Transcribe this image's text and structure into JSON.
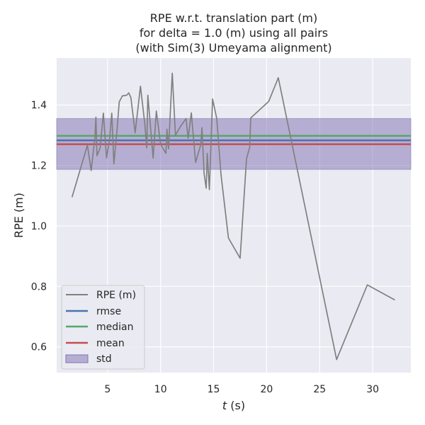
{
  "chart_data": {
    "type": "line",
    "title": [
      "RPE w.r.t. translation part (m)",
      "for delta = 1.0 (m) using all pairs",
      "(with Sim(3) Umeyama alignment)"
    ],
    "xlabel_var": "t",
    "xlabel_unit": " (s)",
    "ylabel": "RPE (m)",
    "xlim": [
      0.2,
      33.6
    ],
    "ylim": [
      0.515,
      1.555
    ],
    "xticks": [
      5,
      10,
      15,
      20,
      25,
      30
    ],
    "yticks": [
      0.6,
      0.8,
      1.0,
      1.2,
      1.4
    ],
    "ytick_labels": [
      "0.6",
      "0.8",
      "1.0",
      "1.2",
      "1.4"
    ],
    "grid": true,
    "legend_position": "lower-left",
    "series": [
      {
        "name": "RPE (m)",
        "color": "#808080",
        "x": [
          1.65,
          3.1,
          3.45,
          3.8,
          3.9,
          4.0,
          4.3,
          4.6,
          4.9,
          5.2,
          5.4,
          5.6,
          5.9,
          6.1,
          6.4,
          6.8,
          7.0,
          7.2,
          7.6,
          8.1,
          8.5,
          8.7,
          8.8,
          9.3,
          9.6,
          10.0,
          10.5,
          10.6,
          10.75,
          11.1,
          11.4,
          11.9,
          12.4,
          12.6,
          12.9,
          13.3,
          13.8,
          13.9,
          14.1,
          14.3,
          14.4,
          14.6,
          14.9,
          15.3,
          15.7,
          16.4,
          17.5,
          18.1,
          18.4,
          18.5,
          20.2,
          21.1,
          26.6,
          29.5,
          32.1
        ],
        "y": [
          1.095,
          1.267,
          1.183,
          1.29,
          1.36,
          1.232,
          1.258,
          1.373,
          1.225,
          1.29,
          1.373,
          1.205,
          1.319,
          1.41,
          1.43,
          1.432,
          1.44,
          1.424,
          1.308,
          1.462,
          1.34,
          1.258,
          1.432,
          1.224,
          1.38,
          1.27,
          1.24,
          1.32,
          1.255,
          1.505,
          1.3,
          1.33,
          1.355,
          1.29,
          1.374,
          1.21,
          1.27,
          1.325,
          1.174,
          1.125,
          1.24,
          1.12,
          1.42,
          1.355,
          1.17,
          0.96,
          0.893,
          1.222,
          1.26,
          1.357,
          1.412,
          1.49,
          0.558,
          0.805,
          0.755
        ]
      },
      {
        "name": "rmse",
        "color": "#4c72b0",
        "y": 1.283
      },
      {
        "name": "median",
        "color": "#55a868",
        "y": 1.298
      },
      {
        "name": "mean",
        "color": "#c44e52",
        "y": 1.27
      },
      {
        "name": "std",
        "color": "#8172b2",
        "range": [
          1.187,
          1.355
        ]
      }
    ]
  }
}
